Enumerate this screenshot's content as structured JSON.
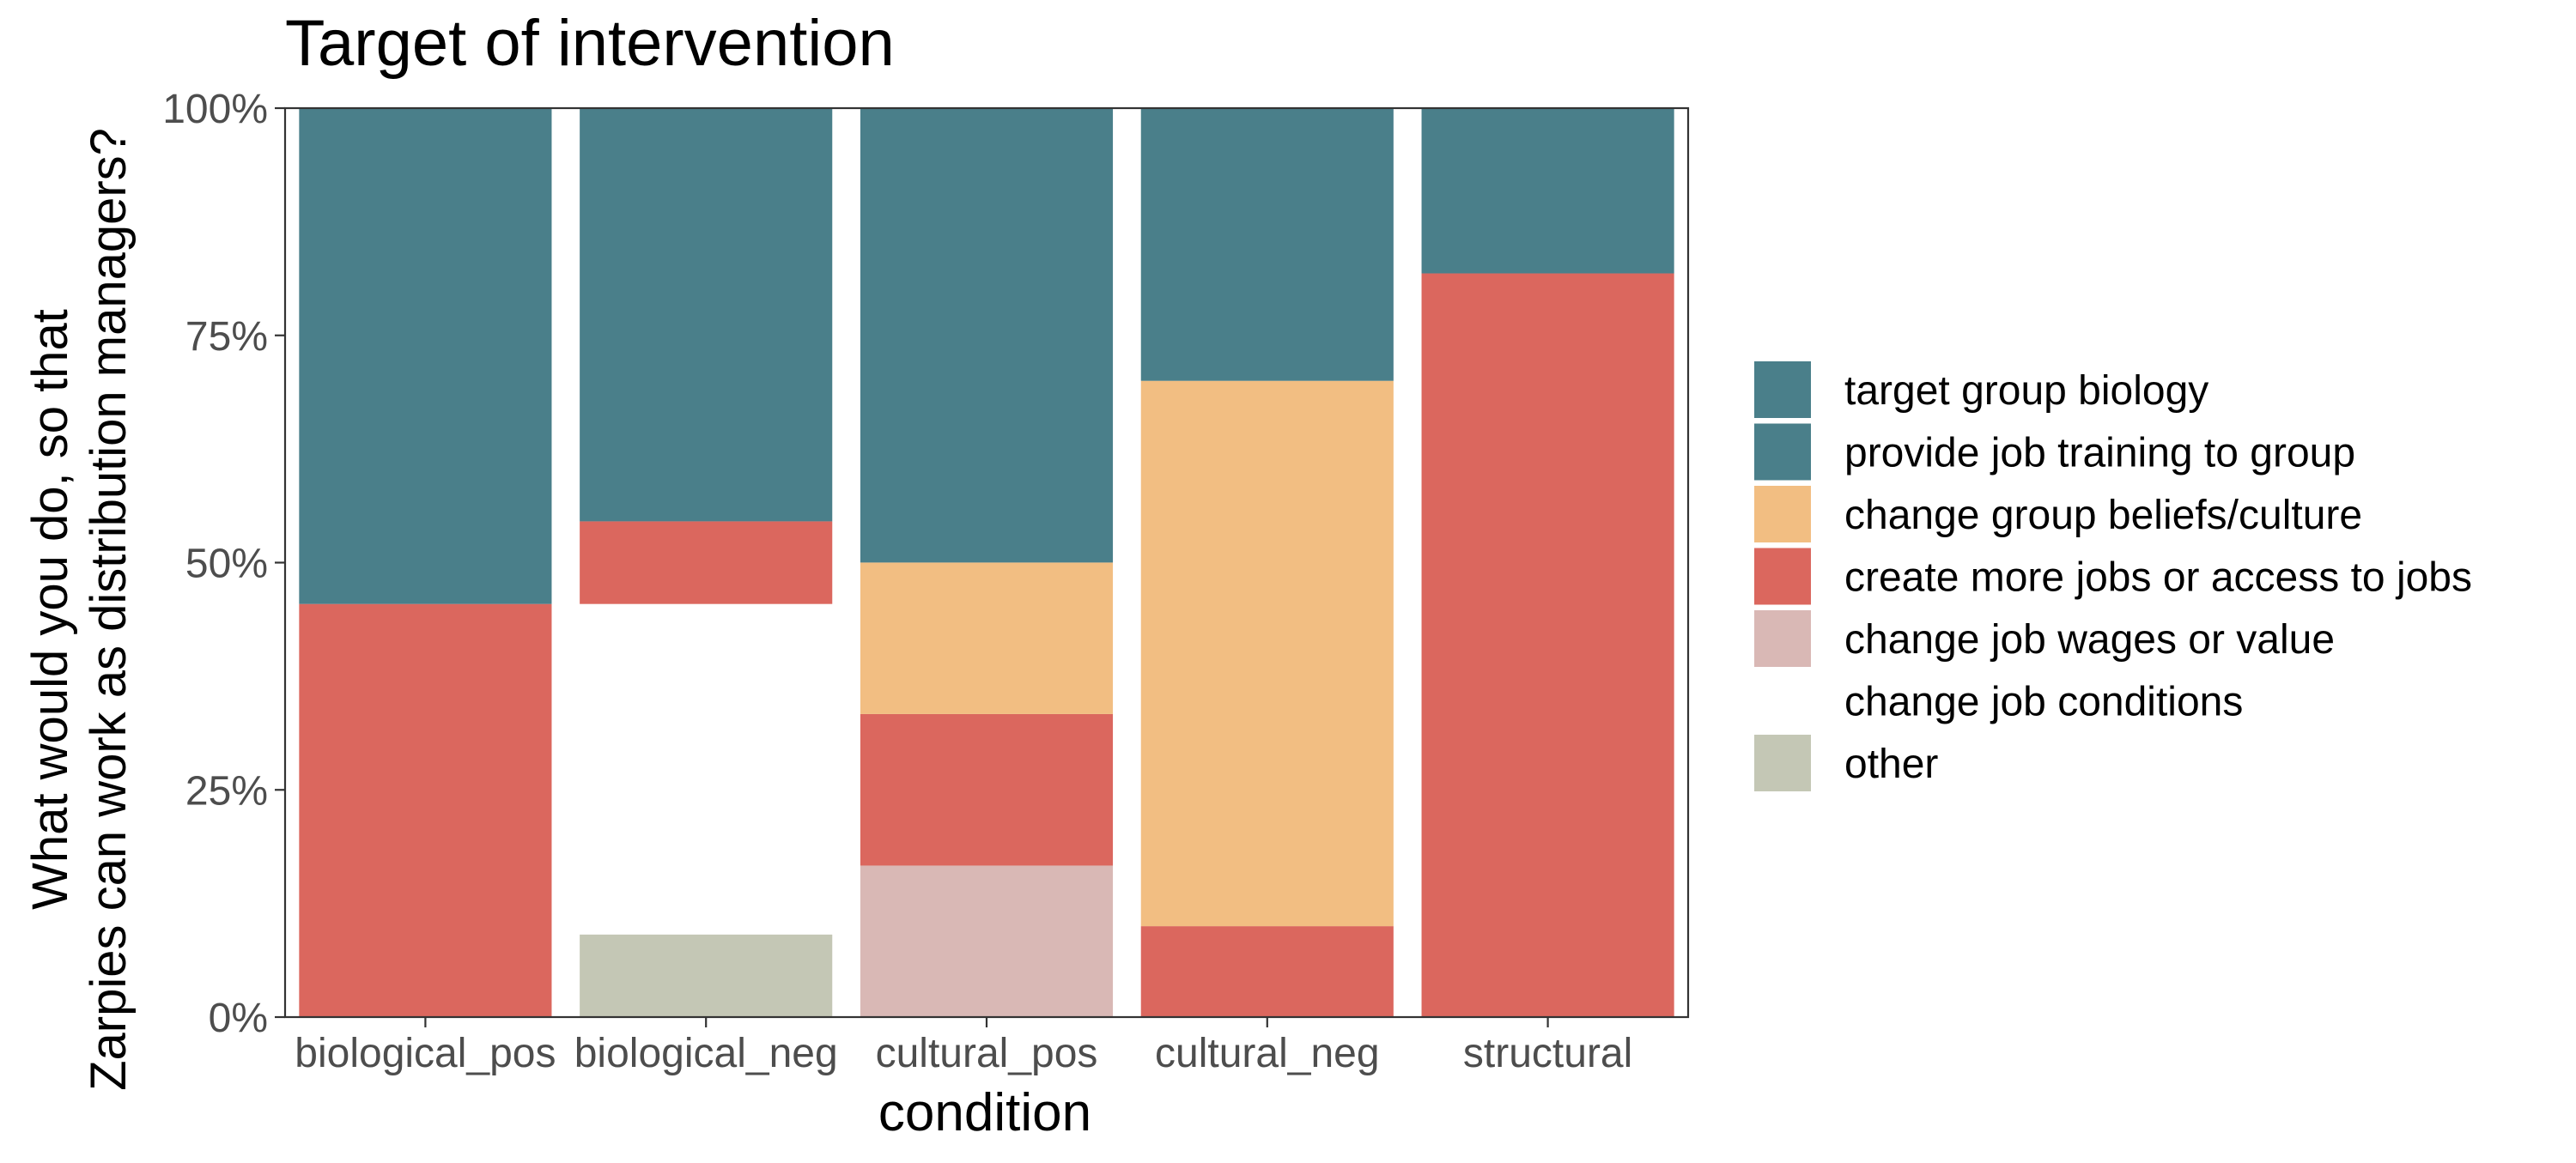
{
  "chart_data": {
    "type": "bar",
    "stacked": true,
    "normalized": true,
    "title": "Target of intervention",
    "xlabel": "condition",
    "ylabel_lines": [
      "What would you do, so that",
      "Zarpies can work as distribution managers?"
    ],
    "ylim": [
      0,
      1
    ],
    "y_ticks": [
      0,
      0.25,
      0.5,
      0.75,
      1
    ],
    "y_tick_labels": [
      "0%",
      "25%",
      "50%",
      "75%",
      "100%"
    ],
    "categories": [
      "biological_pos",
      "biological_neg",
      "cultural_pos",
      "cultural_neg",
      "structural"
    ],
    "grid": false,
    "legend_position": "right",
    "series": [
      {
        "name": "other",
        "color": "#c4c7b5",
        "values": [
          0,
          0.0909,
          0,
          0,
          0
        ]
      },
      {
        "name": "change job conditions",
        "color": "#ffffff",
        "values": [
          0,
          0.3636,
          0,
          0,
          0
        ]
      },
      {
        "name": "change job wages or value",
        "color": "#d9b8b5",
        "values": [
          0,
          0,
          0.1667,
          0,
          0
        ]
      },
      {
        "name": "create more jobs or access to jobs",
        "color": "#db675e",
        "values": [
          0.4545,
          0.0909,
          0.1667,
          0.1,
          0.8182
        ]
      },
      {
        "name": "change group beliefs/culture",
        "color": "#f2be82",
        "values": [
          0,
          0,
          0.1667,
          0.6,
          0
        ]
      },
      {
        "name": "provide job training to group",
        "color": "#4a7f8a",
        "values": [
          0.5455,
          0.4545,
          0.5,
          0.3,
          0.1818
        ]
      },
      {
        "name": "target group biology",
        "color": "#4a7f8a",
        "values": [
          0,
          0,
          0,
          0,
          0
        ]
      }
    ],
    "legend_order": [
      "target group biology",
      "provide job training to group",
      "change group beliefs/culture",
      "create more jobs or access to jobs",
      "change job wages or value",
      "change job conditions",
      "other"
    ]
  }
}
